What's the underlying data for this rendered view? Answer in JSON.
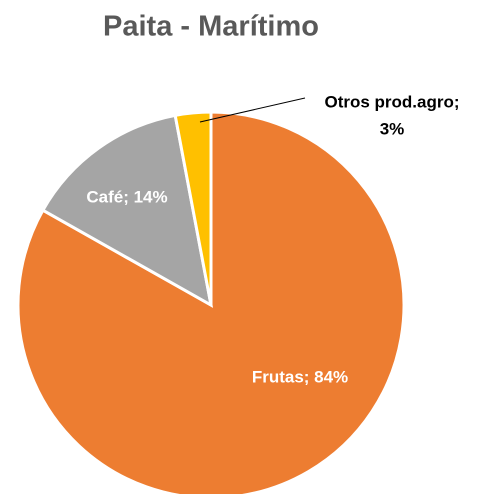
{
  "chart_data": {
    "type": "pie",
    "title": "Paita - Marítimo",
    "values": [
      84,
      14,
      3
    ],
    "value_labels": [
      [
        "Frutas; 84%"
      ],
      [
        "Café; 14%"
      ],
      [
        "Otros prod.agro;",
        "3%"
      ]
    ],
    "colors": [
      "#ED7D31",
      "#A5A5A5",
      "#FFC000"
    ]
  }
}
